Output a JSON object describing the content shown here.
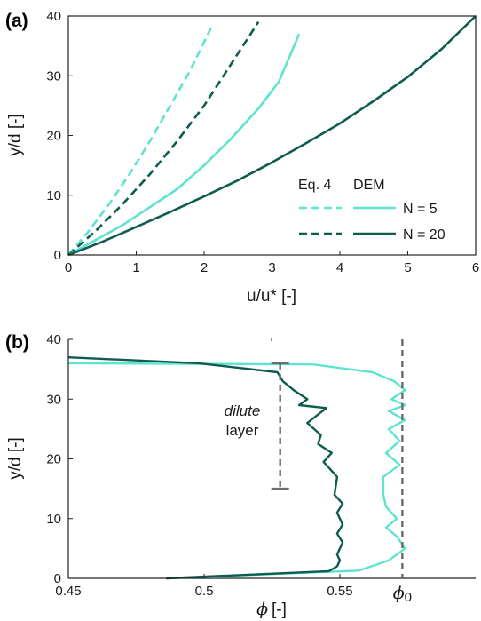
{
  "colors": {
    "light": "#5fe3cf",
    "dark": "#0e5c4f",
    "axis": "#222222",
    "ref": "#6b6b6b"
  },
  "chart_data": [
    {
      "type": "line",
      "panel_label": "(a)",
      "xlabel": "u/u* [-]",
      "ylabel": "y/d [-]",
      "xlim": [
        0,
        6
      ],
      "ylim": [
        0,
        40
      ],
      "xticks": [
        "0",
        "1",
        "2",
        "3",
        "4",
        "5",
        "6"
      ],
      "yticks": [
        "0",
        "10",
        "20",
        "30",
        "40"
      ],
      "legend": {
        "col_eq4": "Eq. 4",
        "col_dem": "DEM",
        "row_n5": "N = 5",
        "row_n20": "N = 20"
      },
      "series": [
        {
          "key": "eq4_n5",
          "style": "dashed",
          "color": "light",
          "x": [
            0,
            0.3,
            0.6,
            0.9,
            1.2,
            1.5,
            1.8,
            2.1
          ],
          "y": [
            0,
            4,
            8.5,
            13.5,
            19,
            25,
            31,
            38
          ]
        },
        {
          "key": "eq4_n20",
          "style": "dashed",
          "color": "dark",
          "x": [
            0,
            0.4,
            0.8,
            1.2,
            1.6,
            2.0,
            2.4,
            2.8
          ],
          "y": [
            0,
            4,
            8.5,
            13.5,
            19,
            25,
            32,
            39
          ]
        },
        {
          "key": "dem_n5",
          "style": "solid",
          "color": "light",
          "x": [
            0,
            0.4,
            0.8,
            1.2,
            1.6,
            2.0,
            2.4,
            2.8,
            3.1,
            3.4
          ],
          "y": [
            0,
            2.5,
            5,
            8,
            11,
            15,
            19.5,
            24.5,
            29,
            37
          ]
        },
        {
          "key": "dem_n20",
          "style": "solid",
          "color": "dark",
          "x": [
            0,
            0.5,
            1.0,
            1.5,
            2.0,
            2.5,
            3.0,
            3.5,
            4.0,
            4.5,
            5.0,
            5.5,
            6.0
          ],
          "y": [
            0,
            2.2,
            4.7,
            7.2,
            9.8,
            12.5,
            15.5,
            18.7,
            22,
            25.8,
            29.8,
            34.5,
            40
          ]
        }
      ]
    },
    {
      "type": "line",
      "panel_label": "(b)",
      "xlabel": "[-]",
      "xlabel_symbol": "ϕ",
      "ylabel": "y/d [-]",
      "xlim": [
        0.45,
        0.6
      ],
      "ylim": [
        0,
        40
      ],
      "xticks": [
        "0.45",
        "0.5",
        "0.55"
      ],
      "xtick_values": [
        0.45,
        0.5,
        0.55
      ],
      "yticks": [
        "0",
        "10",
        "20",
        "30",
        "40"
      ],
      "reference": {
        "label": "ϕ",
        "subscript": "0",
        "x": 0.573
      },
      "annotation": {
        "line1": "dilute",
        "line2": "layer",
        "x": 0.528,
        "y_low": 15,
        "y_high": 36
      },
      "series": [
        {
          "key": "n5",
          "color": "light",
          "x": [
            0.45,
            0.54,
            0.562,
            0.57,
            0.574,
            0.569,
            0.574,
            0.568,
            0.574,
            0.568,
            0.572,
            0.567,
            0.572,
            0.566,
            0.566,
            0.567,
            0.571,
            0.567,
            0.571,
            0.574,
            0.568,
            0.557,
            0.486
          ],
          "y": [
            36,
            35.8,
            34.5,
            33,
            31.5,
            30,
            29,
            28,
            26.5,
            25,
            23,
            21,
            19,
            17,
            14,
            12,
            10,
            8.5,
            7,
            5,
            3,
            1.3,
            0
          ]
        },
        {
          "key": "n20",
          "color": "dark",
          "x": [
            0.45,
            0.498,
            0.527,
            0.529,
            0.533,
            0.538,
            0.535,
            0.545,
            0.538,
            0.543,
            0.542,
            0.547,
            0.544,
            0.549,
            0.548,
            0.551,
            0.549,
            0.551,
            0.549,
            0.551,
            0.549,
            0.55,
            0.549,
            0.546,
            0.486
          ],
          "y": [
            37,
            36,
            34.5,
            33,
            31.5,
            30,
            29,
            28.5,
            26,
            24,
            22.5,
            21,
            19.5,
            17,
            14,
            12.5,
            11,
            9,
            7.5,
            6,
            4,
            3,
            2,
            1.2,
            0
          ]
        }
      ]
    }
  ]
}
